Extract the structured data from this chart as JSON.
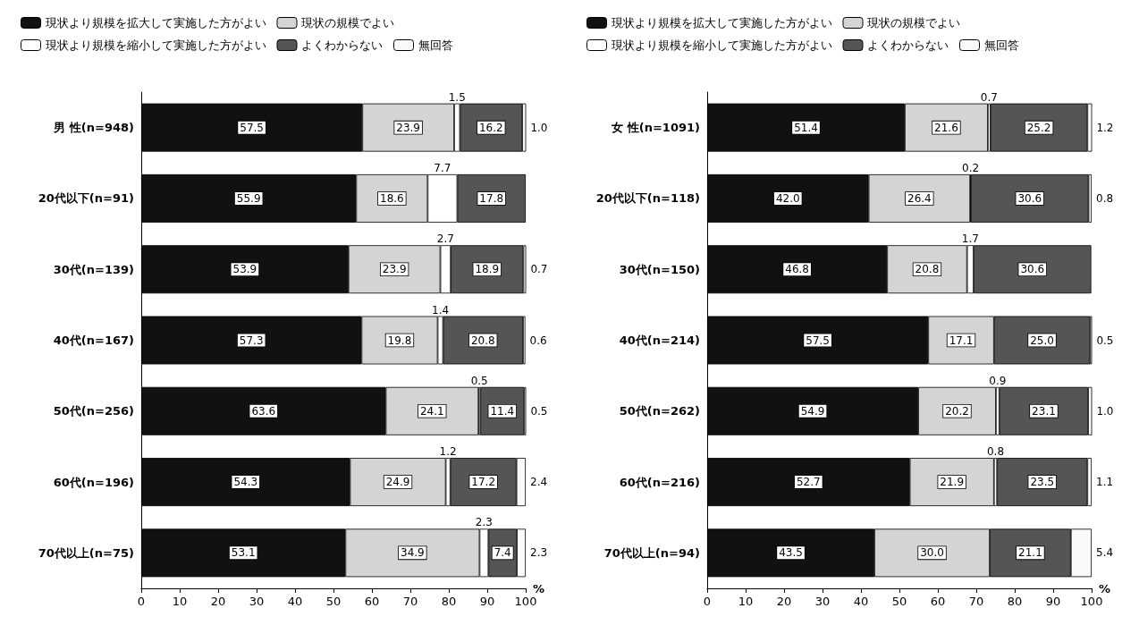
{
  "chart_data": [
    {
      "type": "bar",
      "orientation": "horizontal",
      "stacked": true,
      "legend": "top",
      "grid": false,
      "xlabel": "%",
      "xlim": [
        0,
        100
      ],
      "xticks": [
        0,
        10,
        20,
        30,
        40,
        50,
        60,
        70,
        80,
        90,
        100
      ],
      "categories": [
        "男 性(n=948)",
        "20代以下(n=91)",
        "30代(n=139)",
        "40代(n=167)",
        "50代(n=256)",
        "60代(n=196)",
        "70代以上(n=75)"
      ],
      "series": [
        {
          "name": "現状より規模を拡大して実施した方がよい",
          "color": "#111111",
          "values": [
            57.5,
            55.9,
            53.9,
            57.3,
            63.6,
            54.3,
            53.1
          ],
          "value_labels": [
            "57.5",
            "55.9",
            "53.9",
            "57.3",
            "63.6",
            "54.3",
            "53.1"
          ]
        },
        {
          "name": "現状の規模でよい",
          "color": "#d4d4d4",
          "values": [
            23.9,
            18.6,
            23.9,
            19.8,
            24.1,
            24.9,
            34.9
          ],
          "value_labels": [
            "23.9",
            "18.6",
            "23.9",
            "19.8",
            "24.1",
            "24.9",
            "34.9"
          ]
        },
        {
          "name": "現状より規模を縮小して実施した方がよい",
          "color": "#ffffff",
          "values": [
            1.5,
            7.7,
            2.7,
            1.4,
            0.5,
            1.2,
            2.3
          ],
          "value_labels": [
            "1.5",
            "7.7",
            "2.7",
            "1.4",
            "0.5",
            "1.2",
            "2.3"
          ]
        },
        {
          "name": "よくわからない",
          "color": "#555555",
          "values": [
            16.2,
            17.8,
            18.9,
            20.8,
            11.4,
            17.2,
            7.4
          ],
          "value_labels": [
            "16.2",
            "17.8",
            "18.9",
            "20.8",
            "11.4",
            "17.2",
            "7.4"
          ]
        },
        {
          "name": "無回答",
          "color": "#fafafa",
          "values": [
            1.0,
            null,
            0.7,
            0.6,
            0.5,
            2.4,
            2.3
          ],
          "value_labels": [
            "1.0",
            null,
            "0.7",
            "0.6",
            "0.5",
            "2.4",
            "2.3"
          ]
        }
      ]
    },
    {
      "type": "bar",
      "orientation": "horizontal",
      "stacked": true,
      "legend": "top",
      "grid": false,
      "xlabel": "%",
      "xlim": [
        0,
        100
      ],
      "xticks": [
        0,
        10,
        20,
        30,
        40,
        50,
        60,
        70,
        80,
        90,
        100
      ],
      "categories": [
        "女 性(n=1091)",
        "20代以下(n=118)",
        "30代(n=150)",
        "40代(n=214)",
        "50代(n=262)",
        "60代(n=216)",
        "70代以上(n=94)"
      ],
      "series": [
        {
          "name": "現状より規模を拡大して実施した方がよい",
          "color": "#111111",
          "values": [
            51.4,
            42.0,
            46.8,
            57.5,
            54.9,
            52.7,
            43.5
          ],
          "value_labels": [
            "51.4",
            "42.0",
            "46.8",
            "57.5",
            "54.9",
            "52.7",
            "43.5"
          ]
        },
        {
          "name": "現状の規模でよい",
          "color": "#d4d4d4",
          "values": [
            21.6,
            26.4,
            20.8,
            17.1,
            20.2,
            21.9,
            30.0
          ],
          "value_labels": [
            "21.6",
            "26.4",
            "20.8",
            "17.1",
            "20.2",
            "21.9",
            "30.0"
          ]
        },
        {
          "name": "現状より規模を縮小して実施した方がよい",
          "color": "#ffffff",
          "values": [
            0.7,
            0.2,
            1.7,
            null,
            0.9,
            0.8,
            null
          ],
          "value_labels": [
            "0.7",
            "0.2",
            "1.7",
            null,
            "0.9",
            "0.8",
            null
          ]
        },
        {
          "name": "よくわからない",
          "color": "#555555",
          "values": [
            25.2,
            30.6,
            30.6,
            25.0,
            23.1,
            23.5,
            21.1
          ],
          "value_labels": [
            "25.2",
            "30.6",
            "30.6",
            "25.0",
            "23.1",
            "23.5",
            "21.1"
          ]
        },
        {
          "name": "無回答",
          "color": "#fafafa",
          "values": [
            1.2,
            0.8,
            null,
            0.5,
            1.0,
            1.1,
            5.4
          ],
          "value_labels": [
            "1.2",
            "0.8",
            null,
            "0.5",
            "1.0",
            "1.1",
            "5.4"
          ]
        }
      ]
    }
  ]
}
